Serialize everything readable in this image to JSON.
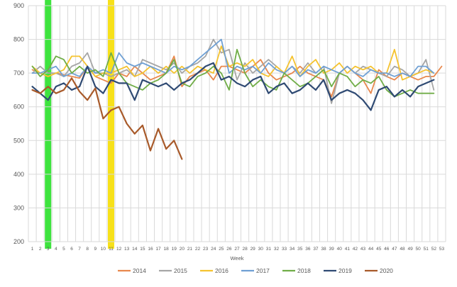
{
  "chart_data": {
    "type": "line",
    "title": "",
    "xlabel": "Week",
    "ylabel": "",
    "ylim": [
      200,
      900
    ],
    "y_ticks": [
      200,
      300,
      400,
      500,
      600,
      700,
      800,
      900
    ],
    "x": [
      "1",
      "2",
      "3",
      "4",
      "5",
      "6",
      "7",
      "8",
      "9",
      "10",
      "11",
      "12",
      "13",
      "14",
      "15",
      "16",
      "17",
      "18",
      "19",
      "20",
      "21",
      "22",
      "23",
      "24",
      "25",
      "26",
      "27",
      "28",
      "29",
      "30",
      "31",
      "32",
      "33",
      "34",
      "35",
      "36",
      "37",
      "38",
      "39",
      "40",
      "41",
      "42",
      "43",
      "44",
      "45",
      "46",
      "47",
      "48",
      "49",
      "50",
      "51",
      "52",
      "53"
    ],
    "grid": true,
    "legend": "bottom",
    "highlights": [
      {
        "week": 3,
        "color": "#3ee33e"
      },
      {
        "week": 11,
        "color": "#f7e11a"
      }
    ],
    "series": [
      {
        "name": "2014",
        "color": "#e8884d",
        "values": [
          710,
          700,
          690,
          700,
          695,
          690,
          685,
          720,
          690,
          680,
          670,
          700,
          690,
          720,
          700,
          680,
          690,
          700,
          750,
          660,
          690,
          700,
          710,
          680,
          720,
          720,
          710,
          700,
          720,
          740,
          700,
          680,
          690,
          700,
          720,
          700,
          690,
          680,
          630,
          700,
          720,
          700,
          680,
          640,
          710,
          690,
          680,
          700,
          690,
          680,
          690,
          690,
          720
        ]
      },
      {
        "name": "2015",
        "color": "#a6a6a6",
        "values": [
          700,
          720,
          700,
          700,
          690,
          720,
          730,
          760,
          700,
          700,
          690,
          700,
          710,
          690,
          740,
          730,
          720,
          710,
          730,
          700,
          720,
          730,
          750,
          800,
          760,
          770,
          680,
          730,
          700,
          720,
          740,
          720,
          700,
          720,
          700,
          730,
          700,
          720,
          610,
          700,
          720,
          700,
          720,
          710,
          700,
          690,
          720,
          710,
          690,
          700,
          740,
          650,
          null
        ]
      },
      {
        "name": "2016",
        "color": "#f5c330",
        "values": [
          720,
          700,
          690,
          700,
          710,
          750,
          750,
          720,
          690,
          700,
          700,
          710,
          720,
          690,
          700,
          720,
          700,
          720,
          700,
          720,
          700,
          720,
          710,
          700,
          780,
          720,
          730,
          720,
          740,
          700,
          690,
          720,
          700,
          750,
          690,
          720,
          740,
          700,
          710,
          730,
          700,
          720,
          710,
          720,
          700,
          700,
          770,
          680,
          690,
          700,
          710,
          700,
          null
        ]
      },
      {
        "name": "2017",
        "color": "#6fa0d4",
        "values": [
          700,
          700,
          710,
          720,
          690,
          700,
          690,
          720,
          700,
          710,
          700,
          760,
          730,
          720,
          730,
          720,
          710,
          700,
          720,
          710,
          720,
          740,
          760,
          780,
          800,
          700,
          720,
          710,
          720,
          700,
          730,
          710,
          700,
          720,
          690,
          710,
          700,
          720,
          710,
          700,
          720,
          700,
          690,
          710,
          700,
          700,
          690,
          700,
          690,
          720,
          720,
          700,
          null
        ]
      },
      {
        "name": "2018",
        "color": "#70ad47",
        "values": [
          720,
          690,
          710,
          750,
          740,
          700,
          720,
          700,
          710,
          690,
          760,
          700,
          670,
          660,
          650,
          670,
          680,
          700,
          740,
          670,
          660,
          690,
          700,
          720,
          700,
          650,
          770,
          700,
          660,
          680,
          660,
          650,
          700,
          680,
          660,
          670,
          690,
          710,
          660,
          700,
          690,
          660,
          680,
          670,
          690,
          650,
          630,
          640,
          650,
          640,
          640,
          640,
          null
        ]
      },
      {
        "name": "2019",
        "color": "#2f4a73",
        "values": [
          660,
          640,
          620,
          660,
          670,
          650,
          660,
          720,
          660,
          640,
          680,
          670,
          670,
          620,
          680,
          670,
          660,
          670,
          650,
          670,
          680,
          700,
          720,
          730,
          680,
          690,
          670,
          660,
          680,
          690,
          640,
          660,
          670,
          640,
          650,
          670,
          650,
          680,
          620,
          640,
          650,
          640,
          620,
          590,
          650,
          660,
          630,
          650,
          630,
          660,
          670,
          680,
          null
        ]
      },
      {
        "name": "2020",
        "color": "#a85a2a",
        "values": [
          650,
          640,
          660,
          640,
          650,
          685,
          645,
          620,
          655,
          565,
          590,
          600,
          550,
          520,
          545,
          470,
          535,
          475,
          500,
          445,
          null,
          null,
          null,
          null,
          null,
          null,
          null,
          null,
          null,
          null,
          null,
          null,
          null,
          null,
          null,
          null,
          null,
          null,
          null,
          null,
          null,
          null,
          null,
          null,
          null,
          null,
          null,
          null,
          null,
          null,
          null,
          null,
          null
        ]
      }
    ]
  }
}
